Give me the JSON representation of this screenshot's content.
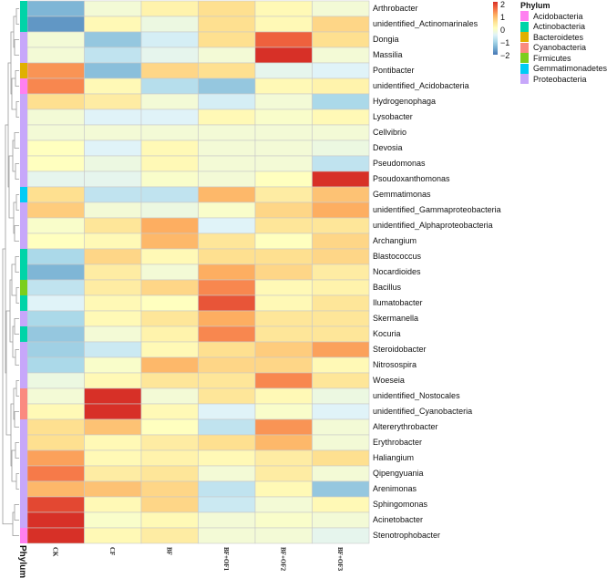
{
  "chart_data": {
    "type": "heatmap",
    "columns": [
      "CK",
      "CF",
      "BF",
      "BF+OF1",
      "BF+OF2",
      "BF+OF3"
    ],
    "rows": [
      "Arthrobacter",
      "unidentified_Actinomarinales",
      "Dongia",
      "Massilia",
      "Pontibacter",
      "unidentified_Acidobacteria",
      "Hydrogenophaga",
      "Lysobacter",
      "Cellvibrio",
      "Devosia",
      "Pseudomonas",
      "Psoudoxanthomonas",
      "Gemmatimonas",
      "unidentified_Gammaproteobacteria",
      "unidentified_Alphaproteobacteria",
      "Archangium",
      "Blastococcus",
      "Nocardioides",
      "Bacillus",
      "Ilumatobacter",
      "Skermanella",
      "Kocuria",
      "Steroidobacter",
      "Nitrosospira",
      "Woeseia",
      "unidentified_Nostocales",
      "unidentified_Cyanobacteria",
      "Altererythrobacter",
      "Erythrobacter",
      "Haliangium",
      "Qipengyuania",
      "Arenimonas",
      "Sphingomonas",
      "Acinetobacter",
      "Stenotrophobacter"
    ],
    "values": [
      [
        -1.4,
        -0.2,
        0.2,
        0.5,
        0.1,
        -0.2
      ],
      [
        -1.7,
        0.1,
        -0.3,
        0.5,
        0.1,
        0.6
      ],
      [
        -0.2,
        -1.2,
        -0.6,
        0.5,
        1.6,
        0.5
      ],
      [
        -0.2,
        -0.8,
        -0.4,
        -0.2,
        2.0,
        -0.2
      ],
      [
        1.2,
        -1.3,
        0.6,
        0.5,
        -0.4,
        -0.5
      ],
      [
        1.3,
        0.1,
        -0.9,
        -1.2,
        0.1,
        0.2
      ],
      [
        0.5,
        0.3,
        -0.2,
        -0.6,
        -0.2,
        -1.0
      ],
      [
        -0.2,
        -0.5,
        -0.5,
        0.1,
        -0.1,
        0.1
      ],
      [
        -0.2,
        -0.2,
        -0.2,
        -0.2,
        -0.2,
        -0.2
      ],
      [
        0.0,
        -0.5,
        0.1,
        -0.2,
        -0.2,
        -0.3
      ],
      [
        0.0,
        -0.3,
        0.1,
        -0.2,
        -0.2,
        -0.8
      ],
      [
        -0.4,
        -0.4,
        -0.1,
        -0.2,
        0.0,
        2.1
      ],
      [
        0.5,
        -0.8,
        -0.8,
        0.9,
        0.3,
        0.8
      ],
      [
        0.7,
        -0.2,
        -0.3,
        -0.1,
        0.6,
        1.0
      ],
      [
        -0.1,
        0.4,
        1.0,
        -0.5,
        0.4,
        0.4
      ],
      [
        0.0,
        0.1,
        0.9,
        0.4,
        0.0,
        0.6
      ],
      [
        -1.0,
        0.6,
        0.1,
        0.5,
        0.5,
        0.6
      ],
      [
        -1.4,
        0.3,
        -0.2,
        1.0,
        0.6,
        0.3
      ],
      [
        -0.8,
        0.3,
        0.6,
        1.3,
        0.1,
        0.2
      ],
      [
        -0.5,
        0.1,
        0.0,
        1.7,
        0.1,
        0.4
      ],
      [
        -1.0,
        0.1,
        0.4,
        1.0,
        0.4,
        0.4
      ],
      [
        -1.2,
        -0.2,
        0.2,
        1.3,
        0.4,
        0.4
      ],
      [
        -1.1,
        -0.7,
        0.1,
        0.5,
        0.7,
        1.1
      ],
      [
        -1.0,
        -0.1,
        0.9,
        0.6,
        0.6,
        0.1
      ],
      [
        -0.3,
        0.1,
        0.4,
        0.4,
        1.3,
        0.4
      ],
      [
        -0.2,
        2.1,
        -0.2,
        0.4,
        0.1,
        -0.3
      ],
      [
        0.1,
        2.1,
        0.1,
        -0.5,
        -0.1,
        -0.5
      ],
      [
        0.5,
        0.8,
        0.0,
        -0.8,
        1.2,
        -0.2
      ],
      [
        0.5,
        0.1,
        0.3,
        0.5,
        0.9,
        -0.2
      ],
      [
        1.1,
        0.1,
        0.2,
        0.1,
        0.3,
        0.5
      ],
      [
        1.4,
        0.3,
        0.4,
        -0.2,
        0.3,
        -0.2
      ],
      [
        0.9,
        0.8,
        0.6,
        -0.8,
        0.1,
        -1.2
      ],
      [
        1.8,
        0.1,
        0.6,
        -0.7,
        -0.2,
        0.1
      ],
      [
        2.1,
        -0.1,
        0.1,
        -0.2,
        -0.1,
        -0.2
      ],
      [
        2.0,
        0.1,
        0.3,
        -0.2,
        -0.2,
        -0.4
      ]
    ],
    "row_phylum": [
      "Actinobacteria",
      "Actinobacteria",
      "Proteobacteria",
      "Proteobacteria",
      "Bacteroidetes",
      "Acidobacteria",
      "Proteobacteria",
      "Proteobacteria",
      "Proteobacteria",
      "Proteobacteria",
      "Proteobacteria",
      "Proteobacteria",
      "Gemmatimonadetes",
      "Proteobacteria",
      "Proteobacteria",
      "Proteobacteria",
      "Actinobacteria",
      "Actinobacteria",
      "Firmicutes",
      "Actinobacteria",
      "Proteobacteria",
      "Actinobacteria",
      "Proteobacteria",
      "Proteobacteria",
      "Proteobacteria",
      "Cyanobacteria",
      "Cyanobacteria",
      "Proteobacteria",
      "Proteobacteria",
      "Proteobacteria",
      "Proteobacteria",
      "Proteobacteria",
      "Proteobacteria",
      "Proteobacteria",
      "Acidobacteria"
    ],
    "color_scale": {
      "range": [
        -2,
        2
      ],
      "ticks": [
        "2",
        "1",
        "0",
        "−1",
        "−2"
      ],
      "low": "#4575b4",
      "mid": "#ffffbf",
      "high": "#d73027"
    },
    "annotation_title": "Phylum",
    "legend": [
      {
        "name": "Acidobacteria",
        "color": "#ff80f0"
      },
      {
        "name": "Actinobacteria",
        "color": "#00d4a8"
      },
      {
        "name": "Bacteroidetes",
        "color": "#e0b000"
      },
      {
        "name": "Cyanobacteria",
        "color": "#fa8a80"
      },
      {
        "name": "Firmicutes",
        "color": "#7cce1c"
      },
      {
        "name": "Gemmatimonadetes",
        "color": "#00ccf5"
      },
      {
        "name": "Proteobacteria",
        "color": "#c7a7fa"
      }
    ],
    "legend_position": "top-right"
  }
}
